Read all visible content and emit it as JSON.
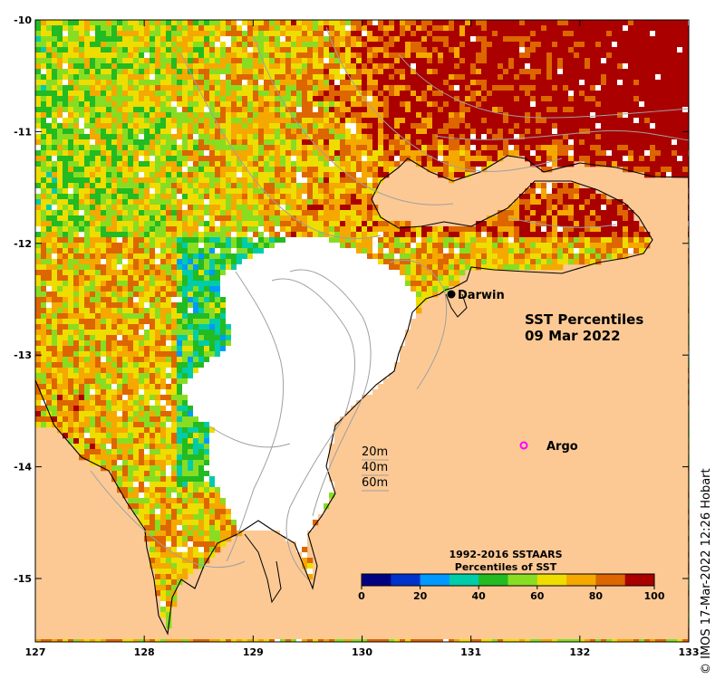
{
  "map": {
    "title_line1": "SST Percentiles",
    "title_line2": "09 Mar 2022",
    "credit": "© IMOS 17-Mar-2022 12:26 Hobart",
    "x_ticks": [
      "127",
      "128",
      "129",
      "130",
      "131",
      "132",
      "133"
    ],
    "y_ticks": [
      "-10",
      "-11",
      "-12",
      "-13",
      "-14",
      "-15"
    ],
    "land_color": "#fcc995",
    "places": [
      {
        "name": "Darwin",
        "marker": "filled-circle",
        "color": "#000000"
      },
      {
        "name": "Argo",
        "marker": "open-circle",
        "color": "#ff00ff"
      }
    ],
    "depth_legend": [
      "20m",
      "40m",
      "60m"
    ]
  },
  "colorbar": {
    "title_line1": "1992-2016 SSTAARS",
    "title_line2": "Percentiles of SST",
    "colors": [
      "#000080",
      "#0033cc",
      "#0099ff",
      "#00ccaa",
      "#22bb22",
      "#88dd22",
      "#eedd00",
      "#f5a800",
      "#dd6600",
      "#aa0000"
    ],
    "tick_labels": [
      "0",
      "20",
      "40",
      "60",
      "80",
      "100"
    ]
  }
}
